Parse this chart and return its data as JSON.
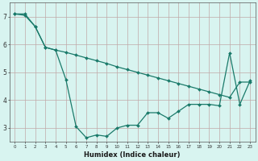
{
  "line1_x": [
    0,
    1,
    2,
    3,
    4,
    5,
    6,
    7,
    8,
    9,
    10,
    11,
    12,
    13,
    14,
    15,
    16,
    17,
    18,
    19,
    20,
    21,
    22,
    23
  ],
  "line1_y": [
    7.1,
    7.1,
    6.65,
    5.9,
    5.8,
    4.75,
    3.05,
    2.65,
    2.75,
    2.7,
    3.0,
    3.1,
    3.1,
    3.55,
    3.55,
    3.35,
    3.6,
    3.85,
    3.85,
    3.85,
    3.8,
    5.7,
    3.85,
    4.7
  ],
  "line2_x": [
    0,
    1,
    2,
    3,
    4,
    5,
    6,
    7,
    8,
    9,
    10,
    11,
    12,
    13,
    14,
    15,
    16,
    17,
    18,
    19,
    20,
    21,
    22,
    23
  ],
  "line2_y": [
    7.1,
    7.05,
    6.65,
    5.9,
    5.8,
    5.72,
    5.62,
    5.52,
    5.42,
    5.32,
    5.2,
    5.1,
    5.0,
    4.9,
    4.8,
    4.7,
    4.6,
    4.5,
    4.4,
    4.3,
    4.2,
    4.1,
    4.65,
    4.65
  ],
  "line_color": "#1a7a6a",
  "bg_color": "#d8f4f0",
  "grid_color": "#c0a8a8",
  "xlabel": "Humidex (Indice chaleur)",
  "ylim": [
    2.5,
    7.5
  ],
  "xlim": [
    -0.5,
    23.5
  ],
  "yticks": [
    3,
    4,
    5,
    6,
    7
  ],
  "xticks": [
    0,
    1,
    2,
    3,
    4,
    5,
    6,
    7,
    8,
    9,
    10,
    11,
    12,
    13,
    14,
    15,
    16,
    17,
    18,
    19,
    20,
    21,
    22,
    23
  ]
}
